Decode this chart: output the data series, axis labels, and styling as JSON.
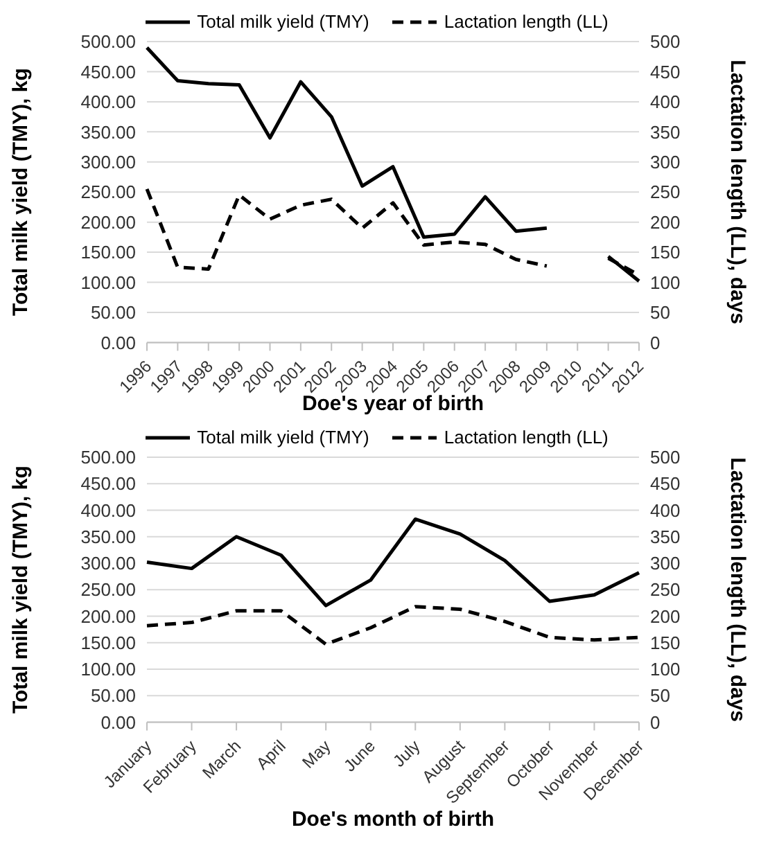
{
  "chart_data": [
    {
      "type": "line",
      "xlabel": "Doe's year of birth",
      "ylabel": "Total milk yield (TMY), kg",
      "y2label": "Lactation length (LL), days",
      "categories": [
        "1996",
        "1997",
        "1998",
        "1999",
        "2000",
        "2001",
        "2002",
        "2003",
        "2004",
        "2005",
        "2006",
        "2007",
        "2008",
        "2009",
        "2010",
        "2011",
        "2012"
      ],
      "series": [
        {
          "name": "Total milk yield (TMY)",
          "color": "#000000",
          "line_style": "solid",
          "values": [
            490,
            435,
            430,
            428,
            340,
            433,
            375,
            260,
            292,
            175,
            180,
            242,
            185,
            190,
            null,
            143,
            102
          ]
        },
        {
          "name": "Lactation length (LL)",
          "color": "#000000",
          "line_style": "dashed",
          "axis": "y2",
          "values": [
            255,
            125,
            122,
            245,
            205,
            228,
            238,
            190,
            232,
            162,
            167,
            163,
            138,
            127,
            null,
            140,
            112
          ]
        }
      ],
      "ylim": [
        0,
        500
      ],
      "yticks": [
        {
          "value": 0,
          "label": "0.00"
        },
        {
          "value": 50,
          "label": "50.00"
        },
        {
          "value": 100,
          "label": "100.00"
        },
        {
          "value": 150,
          "label": "150.00"
        },
        {
          "value": 200,
          "label": "200.00"
        },
        {
          "value": 250,
          "label": "250.00"
        },
        {
          "value": 300,
          "label": "300.00"
        },
        {
          "value": 350,
          "label": "350.00"
        },
        {
          "value": 400,
          "label": "400.00"
        },
        {
          "value": 450,
          "label": "450.00"
        },
        {
          "value": 500,
          "label": "500.00"
        }
      ],
      "y2lim": [
        0,
        500
      ],
      "y2ticks": [
        0,
        50,
        100,
        150,
        200,
        250,
        300,
        350,
        400,
        450,
        500
      ],
      "grid": "y",
      "legend": "top",
      "marker": "none"
    },
    {
      "type": "line",
      "xlabel": "Doe's month of birth",
      "ylabel": "Total milk yield (TMY), kg",
      "y2label": "Lactation length (LL), days",
      "categories": [
        "January",
        "February",
        "March",
        "April",
        "May",
        "June",
        "July",
        "August",
        "September",
        "October",
        "November",
        "December"
      ],
      "series": [
        {
          "name": "Total milk yield (TMY)",
          "color": "#000000",
          "line_style": "solid",
          "values": [
            302,
            290,
            350,
            315,
            220,
            268,
            383,
            355,
            305,
            228,
            240,
            282
          ]
        },
        {
          "name": "Lactation length (LL)",
          "color": "#000000",
          "line_style": "dashed",
          "axis": "y2",
          "values": [
            182,
            188,
            210,
            210,
            147,
            178,
            218,
            213,
            190,
            160,
            155,
            160
          ]
        }
      ],
      "ylim": [
        0,
        500
      ],
      "yticks": [
        {
          "value": 0,
          "label": "0.00"
        },
        {
          "value": 50,
          "label": "50.00"
        },
        {
          "value": 100,
          "label": "100.00"
        },
        {
          "value": 150,
          "label": "150.00"
        },
        {
          "value": 200,
          "label": "200.00"
        },
        {
          "value": 250,
          "label": "250.00"
        },
        {
          "value": 300,
          "label": "300.00"
        },
        {
          "value": 350,
          "label": "350.00"
        },
        {
          "value": 400,
          "label": "400.00"
        },
        {
          "value": 450,
          "label": "450.00"
        },
        {
          "value": 500,
          "label": "500.00"
        }
      ],
      "y2lim": [
        0,
        500
      ],
      "y2ticks": [
        0,
        50,
        100,
        150,
        200,
        250,
        300,
        350,
        400,
        450,
        500
      ],
      "grid": "y",
      "legend": "top",
      "marker": "none"
    }
  ]
}
